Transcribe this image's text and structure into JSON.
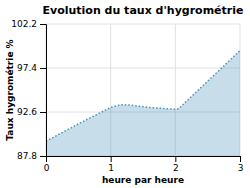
{
  "chart_data": {
    "type": "area",
    "title": "Evolution du taux d'hygrométrie",
    "xlabel": "heure par heure",
    "ylabel": "Taux hygrométrie %",
    "x": [
      0,
      0.5,
      1.0,
      1.15,
      1.3,
      1.6,
      2.0,
      2.05,
      3.0
    ],
    "values": [
      89.4,
      91.3,
      93.1,
      93.4,
      93.35,
      93.1,
      92.9,
      92.95,
      99.3
    ],
    "xlim": [
      0,
      3
    ],
    "ylim": [
      87.8,
      102.2
    ],
    "xticks": [
      0,
      1,
      2,
      3
    ],
    "yticks": [
      87.8,
      92.6,
      97.4,
      102.2
    ],
    "color": "#4a90b8",
    "line_style": "dotted",
    "grid": true
  }
}
